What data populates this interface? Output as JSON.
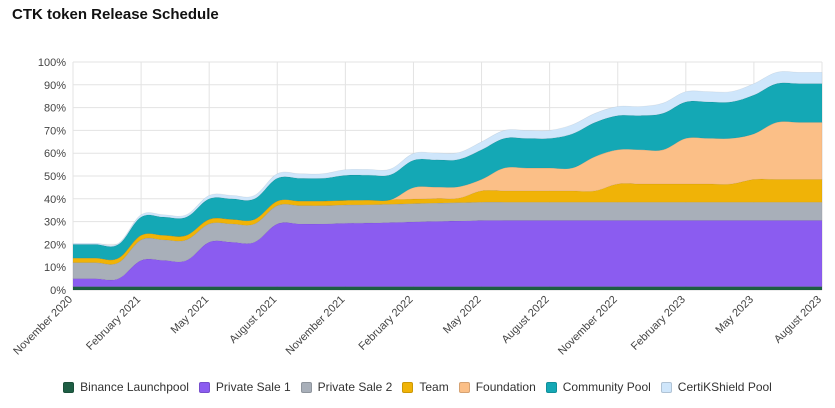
{
  "title": "CTK token Release Schedule",
  "chart_data": {
    "type": "area",
    "stacked": true,
    "x": [
      "November 2020",
      "December 2020",
      "January 2021",
      "February 2021",
      "March 2021",
      "April 2021",
      "May 2021",
      "June 2021",
      "July 2021",
      "August 2021",
      "September 2021",
      "October 2021",
      "November 2021",
      "December 2021",
      "January 2022",
      "February 2022",
      "March 2022",
      "April 2022",
      "May 2022",
      "June 2022",
      "July 2022",
      "August 2022",
      "September 2022",
      "October 2022",
      "November 2022",
      "December 2022",
      "January 2023",
      "February 2023",
      "March 2023",
      "April 2023",
      "May 2023",
      "June 2023",
      "July 2023",
      "August 2023"
    ],
    "x_tick_labels": [
      "November 2020",
      "February 2021",
      "May 2021",
      "August 2021",
      "November 2021",
      "February 2022",
      "May 2022",
      "August 2022",
      "November 2022",
      "February 2023",
      "May 2023",
      "August 2023"
    ],
    "y_tick_labels": [
      "0%",
      "10%",
      "20%",
      "30%",
      "40%",
      "50%",
      "60%",
      "70%",
      "80%",
      "90%",
      "100%"
    ],
    "ylim": [
      0,
      100
    ],
    "grid": true,
    "legend_position": "bottom",
    "series": [
      {
        "name": "Binance Launchpool",
        "color": "#1e5e44",
        "values": [
          1.5,
          1.5,
          1.5,
          1.5,
          1.5,
          1.5,
          1.5,
          1.5,
          1.5,
          1.5,
          1.5,
          1.5,
          1.5,
          1.5,
          1.5,
          1.5,
          1.5,
          1.5,
          1.5,
          1.5,
          1.5,
          1.5,
          1.5,
          1.5,
          1.5,
          1.5,
          1.5,
          1.5,
          1.5,
          1.5,
          1.5,
          1.5,
          1.5,
          1.5
        ]
      },
      {
        "name": "Private Sale 1",
        "color": "#8b5cf0",
        "values": [
          3.5,
          3.5,
          3.5,
          11.5,
          11.5,
          11.5,
          19.5,
          19.5,
          19.5,
          27.5,
          27.5,
          27.5,
          27.8,
          27.9,
          28.1,
          28.4,
          28.6,
          28.8,
          29.0,
          29.0,
          29.0,
          29.0,
          29.0,
          29.0,
          29.0,
          29.0,
          29.0,
          29.0,
          29.0,
          29.0,
          29.0,
          29.0,
          29.0,
          29.0
        ]
      },
      {
        "name": "Private Sale 2",
        "color": "#a8afb9",
        "values": [
          7,
          7,
          7,
          9,
          9,
          9,
          8,
          8,
          8,
          8,
          8,
          8,
          8,
          8,
          8,
          8,
          8,
          8,
          8,
          8,
          8,
          8,
          8,
          8,
          8,
          8,
          8,
          8,
          8,
          8,
          8,
          8,
          8,
          8
        ]
      },
      {
        "name": "Team",
        "color": "#f0b307",
        "values": [
          2,
          2,
          2,
          2,
          2,
          2,
          2,
          2,
          2,
          2,
          2,
          2,
          2,
          2,
          2,
          2,
          2,
          2,
          5,
          5,
          5,
          5,
          5,
          5,
          8,
          8,
          8,
          8,
          8,
          8,
          10,
          10,
          10,
          10
        ]
      },
      {
        "name": "Foundation",
        "color": "#fbbf87",
        "values": [
          0,
          0,
          0,
          0,
          0,
          0,
          0,
          0,
          0,
          0,
          0,
          0,
          0,
          0,
          0,
          5,
          5,
          5,
          5,
          10,
          10,
          10,
          10,
          15,
          15,
          15,
          15,
          20,
          20,
          20,
          20,
          25,
          25,
          25
        ]
      },
      {
        "name": "Community Pool",
        "color": "#14a8b5",
        "values": [
          6,
          6,
          6,
          8,
          8,
          8,
          9,
          9,
          9,
          10,
          10,
          10,
          11,
          11,
          11,
          12,
          12,
          12,
          13,
          13,
          13,
          13,
          15,
          15,
          15,
          15,
          16,
          16,
          16,
          16,
          17,
          17,
          17,
          17
        ]
      },
      {
        "name": "CertiKShield Pool",
        "color": "#cfe6fb",
        "values": [
          0.5,
          0.5,
          0.5,
          1,
          1,
          1,
          1.5,
          1.5,
          1.5,
          2,
          2,
          2,
          2.5,
          2.5,
          2.5,
          3,
          3,
          3,
          3.5,
          3.5,
          3.5,
          3.5,
          4,
          4,
          4,
          4,
          4.5,
          4.5,
          4.5,
          4.5,
          5,
          5,
          5,
          5
        ]
      }
    ]
  }
}
